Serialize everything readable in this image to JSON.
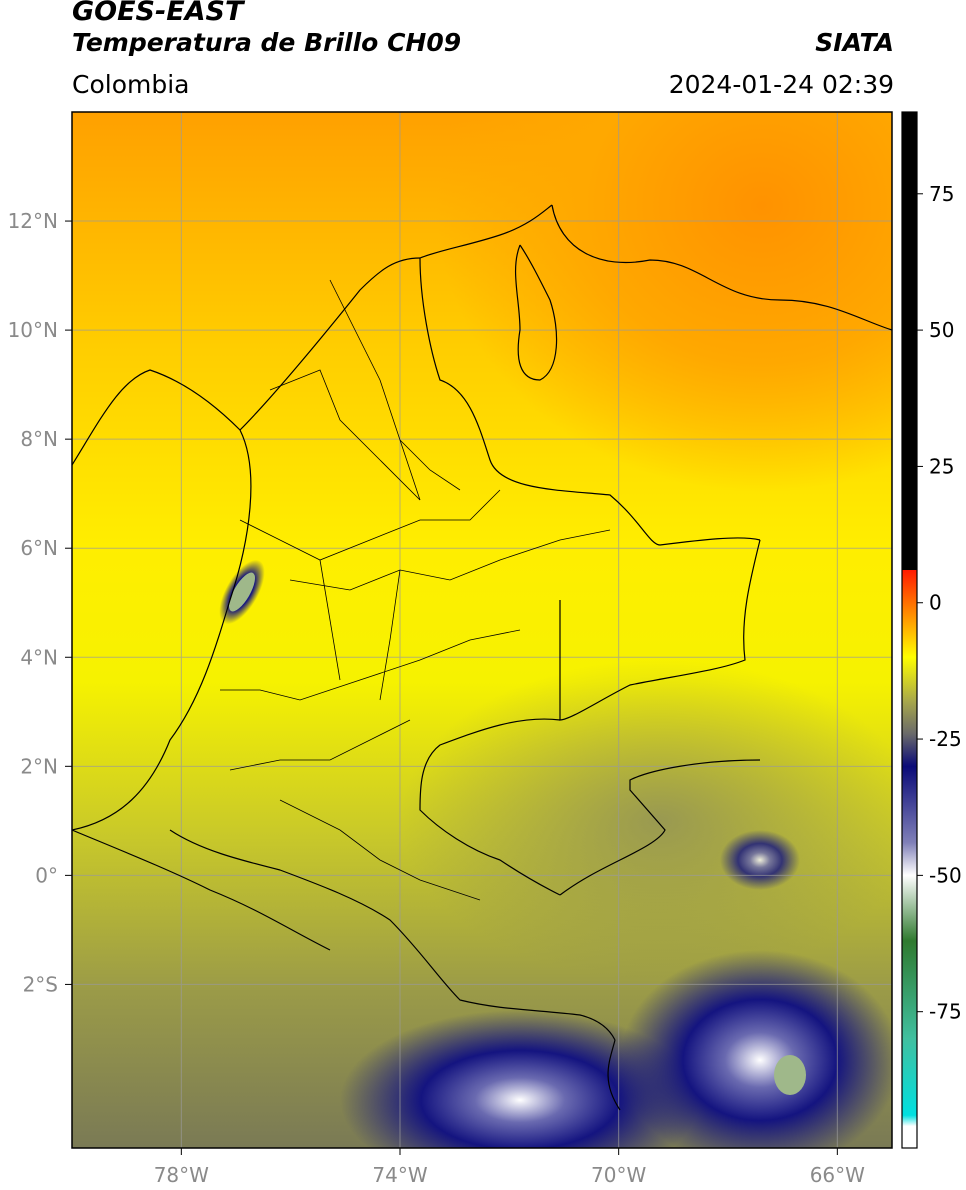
{
  "header": {
    "satellite": "GOES-EAST",
    "product": "Temperatura de Brillo CH09",
    "organization": "SIATA",
    "region": "Colombia",
    "timestamp": "2024-01-24 02:39"
  },
  "map": {
    "lon_range": [
      -80,
      -65
    ],
    "lat_range": [
      -5,
      14
    ],
    "lon_ticks": [
      -78,
      -74,
      -70,
      -66
    ],
    "lon_tick_labels": [
      "78°W",
      "74°W",
      "70°W",
      "66°W"
    ],
    "lat_ticks": [
      12,
      10,
      8,
      6,
      4,
      2,
      0,
      -2
    ],
    "lat_tick_labels": [
      "12°N",
      "10°N",
      "8°N",
      "6°N",
      "4°N",
      "2°N",
      "0°",
      "2°S"
    ],
    "grid": true
  },
  "colorbar": {
    "range": [
      -100,
      90
    ],
    "ticks": [
      75,
      50,
      25,
      0,
      -25,
      -50,
      -75
    ],
    "tick_labels": [
      "75",
      "50",
      "25",
      "0",
      "-25",
      "-50",
      "-75"
    ],
    "colors": {
      "black": "#000000",
      "red": "#ff1a00",
      "orange": "#ff9a00",
      "yellow": "#ffff00",
      "olive": "#a8a84a",
      "gray": "#6a6a6a",
      "navy": "#0a0a78",
      "white": "#ffffff",
      "green": "#2f7a2f",
      "cyan": "#00e0e0"
    }
  }
}
